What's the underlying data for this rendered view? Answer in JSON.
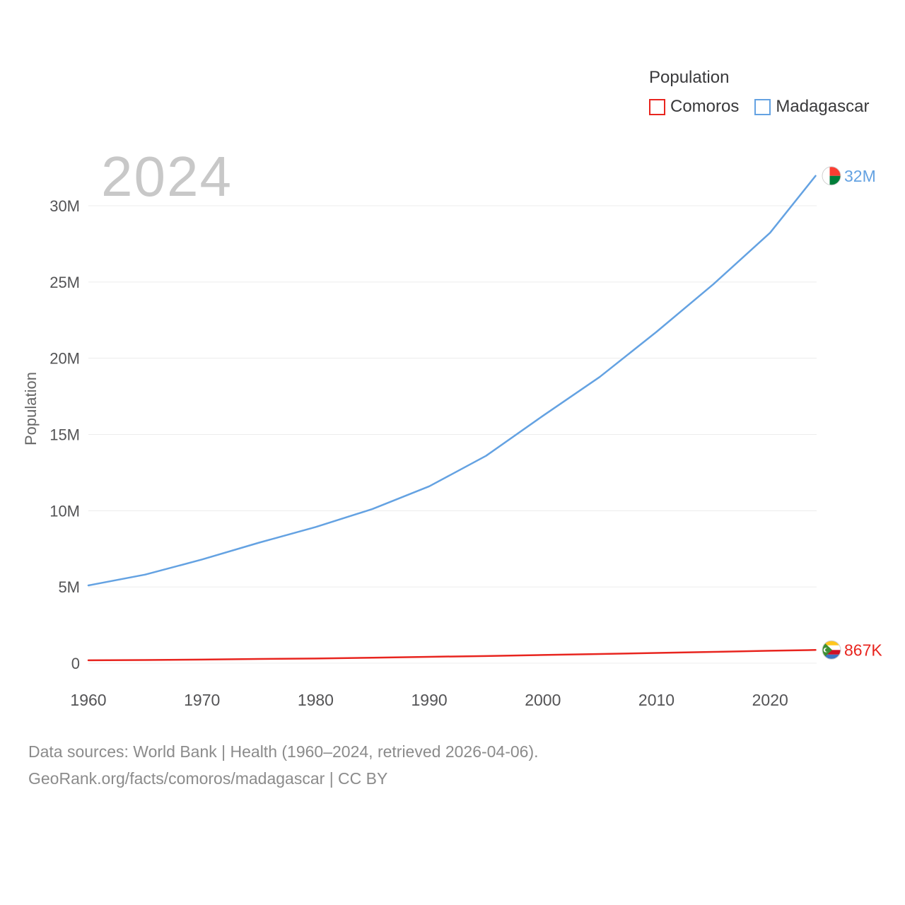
{
  "watermark": "2024",
  "legend": {
    "title": "Population",
    "items": [
      {
        "label": "Comoros",
        "color": "#e8251f"
      },
      {
        "label": "Madagascar",
        "color": "#64a2e2"
      }
    ]
  },
  "y_axis_title": "Population",
  "footer": {
    "line1": "Data sources: World Bank | Health (1960–2024, retrieved 2026-04-06).",
    "line2": "GeoRank.org/facts/comoros/madagascar | CC BY"
  },
  "chart_data": {
    "type": "line",
    "title": "Population",
    "xlabel": "",
    "ylabel": "Population",
    "grid": "horizontal",
    "legend_position": "top-right",
    "x": [
      1960,
      1965,
      1970,
      1975,
      1980,
      1985,
      1990,
      1995,
      2000,
      2005,
      2010,
      2015,
      2020,
      2024
    ],
    "x_ticks": [
      1960,
      1970,
      1980,
      1990,
      2000,
      2010,
      2020
    ],
    "y_ticks": [
      {
        "value": 0,
        "label": "0"
      },
      {
        "value": 5,
        "label": "5M"
      },
      {
        "value": 10,
        "label": "10M"
      },
      {
        "value": 15,
        "label": "15M"
      },
      {
        "value": 20,
        "label": "20M"
      },
      {
        "value": 25,
        "label": "25M"
      },
      {
        "value": 30,
        "label": "30M"
      }
    ],
    "ylim": [
      0,
      32.5
    ],
    "series": [
      {
        "name": "Comoros",
        "color": "#e8251f",
        "flag": "comoros",
        "end_label": "867K",
        "values_millions": [
          0.19,
          0.21,
          0.24,
          0.28,
          0.31,
          0.36,
          0.42,
          0.47,
          0.54,
          0.6,
          0.67,
          0.74,
          0.82,
          0.867
        ]
      },
      {
        "name": "Madagascar",
        "color": "#64a2e2",
        "flag": "madagascar",
        "end_label": "32M",
        "values_millions": [
          5.1,
          5.81,
          6.8,
          7.9,
          8.93,
          10.11,
          11.6,
          13.6,
          16.22,
          18.77,
          21.73,
          24.85,
          28.23,
          31.96
        ]
      }
    ]
  }
}
